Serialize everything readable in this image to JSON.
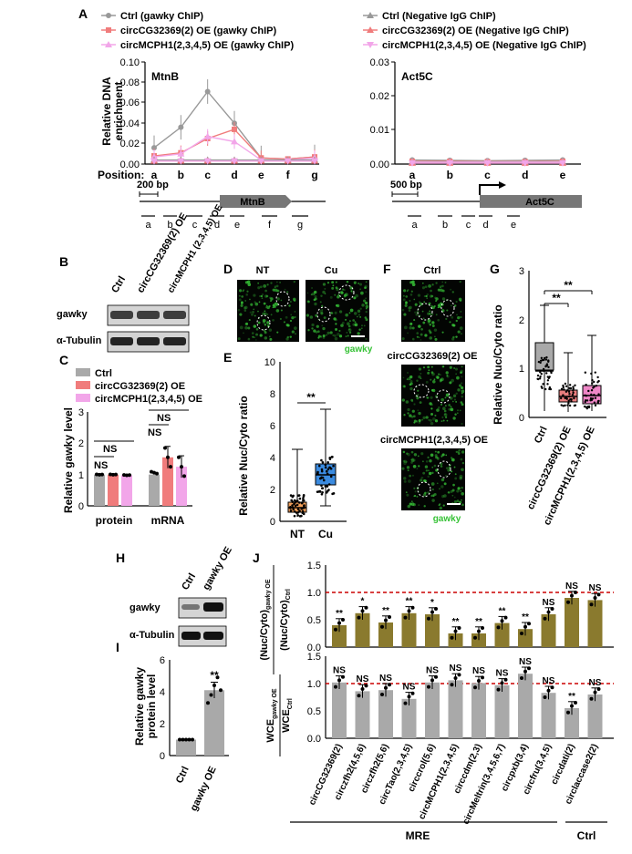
{
  "panel_labels": [
    "A",
    "B",
    "C",
    "D",
    "E",
    "F",
    "G",
    "H",
    "I",
    "J"
  ],
  "colors": {
    "gray": "#999999",
    "red": "#f07c7c",
    "pink": "#f2a6e9",
    "olive": "#8a7a2e",
    "box_gray": "#a9a9a9",
    "box_orange": "#f5a15a",
    "box_blue": "#3b8be0",
    "box_red": "#e87d7d",
    "box_pink": "#ee86c6",
    "dashed_red": "#cc0000",
    "micro_green": "#37c237"
  },
  "panelA": {
    "legend": [
      "Ctrl (gawky ChIP)",
      "Ctrl (Negative IgG ChIP)",
      "circCG32369(2) OE (gawky ChIP)",
      "circCG32369(2) OE (Negative IgG ChIP)",
      "circMCPH1(2,3,4,5) OE (gawky ChIP)",
      "circMCPH1(2,3,4,5) OE (Negative IgG ChIP)"
    ],
    "ylabel": [
      "Relative DNA",
      "enrichment"
    ],
    "position_label": "Position:",
    "left": {
      "gene": "MtnB",
      "yticks": [
        "0.10",
        "0.08",
        "0.06",
        "0.04",
        "0.02",
        "0.00"
      ],
      "xticks": [
        "a",
        "b",
        "c",
        "d",
        "e",
        "f",
        "g"
      ],
      "scalebar": "200 bp",
      "frags": [
        "a",
        "b",
        "c",
        "d",
        "e",
        "f",
        "g"
      ]
    },
    "right": {
      "gene": "Act5C",
      "yticks": [
        "0.03",
        "0.02",
        "0.01",
        "0.00"
      ],
      "xticks": [
        "a",
        "b",
        "c",
        "d",
        "e"
      ],
      "scalebar": "500 bp",
      "frags": [
        "a",
        "b",
        "c",
        "d",
        "e"
      ]
    }
  },
  "chart_data": [
    {
      "type": "line",
      "title": "MtnB",
      "ylabel": "Relative DNA enrichment",
      "ylim": [
        0,
        0.1
      ],
      "x": [
        "a",
        "b",
        "c",
        "d",
        "e",
        "f",
        "g"
      ],
      "series": [
        {
          "name": "Ctrl (gawky ChIP)",
          "values": [
            0.016,
            0.036,
            0.071,
            0.04,
            0.006,
            0.005,
            0.007
          ]
        },
        {
          "name": "circCG32369(2) OE (gawky ChIP)",
          "values": [
            0.008,
            0.011,
            0.025,
            0.034,
            0.006,
            0.005,
            0.007
          ]
        },
        {
          "name": "circMCPH1(2,3,4,5) OE (gawky ChIP)",
          "values": [
            0.007,
            0.01,
            0.027,
            0.022,
            0.004,
            0.004,
            0.006
          ]
        },
        {
          "name": "Ctrl (Negative IgG ChIP)",
          "values": [
            0.004,
            0.004,
            0.004,
            0.004,
            0.004,
            0.004,
            0.004
          ]
        },
        {
          "name": "circCG32369(2) OE (Negative IgG ChIP)",
          "values": [
            0.003,
            0.003,
            0.003,
            0.003,
            0.003,
            0.003,
            0.003
          ]
        },
        {
          "name": "circMCPH1(2,3,4,5) OE (Negative IgG ChIP)",
          "values": [
            0.003,
            0.003,
            0.003,
            0.003,
            0.003,
            0.003,
            0.003
          ]
        }
      ]
    },
    {
      "type": "line",
      "title": "Act5C",
      "ylim": [
        0,
        0.03
      ],
      "x": [
        "a",
        "b",
        "c",
        "d",
        "e"
      ],
      "series": [
        {
          "name": "Ctrl (gawky ChIP)",
          "values": [
            0.0012,
            0.0011,
            0.001,
            0.0011,
            0.0012
          ]
        },
        {
          "name": "circCG32369(2) OE (gawky ChIP)",
          "values": [
            0.0008,
            0.0008,
            0.0007,
            0.0007,
            0.0008
          ]
        },
        {
          "name": "circMCPH1(2,3,4,5) OE (gawky ChIP)",
          "values": [
            0.0006,
            0.0006,
            0.0006,
            0.0006,
            0.0006
          ]
        },
        {
          "name": "Ctrl (Negative IgG ChIP)",
          "values": [
            0.0004,
            0.0004,
            0.0004,
            0.0004,
            0.0004
          ]
        },
        {
          "name": "circCG32369(2) OE (Negative IgG ChIP)",
          "values": [
            0.0003,
            0.0003,
            0.0003,
            0.0003,
            0.0003
          ]
        },
        {
          "name": "circMCPH1(2,3,4,5) OE (Negative IgG ChIP)",
          "values": [
            0.0003,
            0.0003,
            0.0003,
            0.0003,
            0.0003
          ]
        }
      ]
    },
    {
      "type": "bar",
      "ylabel": "Relative gawky level",
      "ylim": [
        0,
        3
      ],
      "categories": [
        "protein",
        "mRNA"
      ],
      "series": [
        {
          "name": "Ctrl",
          "values": [
            1.0,
            1.0
          ]
        },
        {
          "name": "circCG32369(2) OE",
          "values": [
            1.0,
            1.55
          ]
        },
        {
          "name": "circMCPH1(2,3,4,5) OE",
          "values": [
            0.98,
            1.25
          ]
        }
      ],
      "annotations": [
        "NS",
        "NS",
        "NS",
        "NS"
      ]
    },
    {
      "type": "box",
      "ylabel": "Relative Nuc/Cyto ratio",
      "ylim": [
        0,
        10
      ],
      "categories": [
        "NT",
        "Cu"
      ],
      "medians": [
        0.85,
        2.9
      ],
      "annotations": [
        "**"
      ]
    },
    {
      "type": "box",
      "ylabel": "Relative Nuc/Cyto ratio",
      "ylim": [
        0,
        3
      ],
      "categories": [
        "Ctrl",
        "circCG32369(2) OE",
        "circMCPH1(2,3,4,5) OE"
      ],
      "medians": [
        0.95,
        0.42,
        0.45
      ],
      "annotations": [
        "**",
        "**"
      ]
    },
    {
      "type": "bar",
      "ylabel": "Relative gawky protein level",
      "ylim": [
        0,
        6
      ],
      "categories": [
        "Ctrl",
        "gawky OE"
      ],
      "values": [
        1.0,
        4.1
      ],
      "annotations": [
        "**"
      ]
    },
    {
      "type": "bar",
      "ylabel": "(Nuc/Cyto) gawky OE / (Nuc/Cyto) Ctrl",
      "ylim": [
        0,
        1.5
      ],
      "categories": [
        "circCG32369(2)",
        "circzfh2(4,5,6)",
        "circzfh2(5,6)",
        "circTao(2,3,4,5)",
        "circcrol(5,6)",
        "circMCPH1(2,3,4,5)",
        "circcdm(2,3)",
        "circMeltrin(3,4,5,6,7)",
        "circpxb(3,4)",
        "circfru(3,4,5)",
        "circdati(2)",
        "circlaccase2(2)"
      ],
      "values": [
        0.4,
        0.62,
        0.45,
        0.62,
        0.6,
        0.25,
        0.25,
        0.44,
        0.33,
        0.6,
        0.9,
        0.86
      ],
      "annotations": [
        "**",
        "*",
        "**",
        "**",
        "*",
        "**",
        "**",
        "**",
        "**",
        "NS",
        "NS",
        "NS"
      ]
    },
    {
      "type": "bar",
      "ylabel": "WCE gawky OE / WCE Ctrl",
      "ylim": [
        0,
        1.5
      ],
      "categories": [
        "circCG32369(2)",
        "circzfh2(4,5,6)",
        "circzfh2(5,6)",
        "circTao(2,3,4,5)",
        "circcrol(5,6)",
        "circMCPH1(2,3,4,5)",
        "circcdm(2,3)",
        "circMeltrin(3,4,5,6,7)",
        "circpxb(3,4)",
        "circfru(3,4,5)",
        "circdati(2)",
        "circlaccase2(2)"
      ],
      "values": [
        1.02,
        0.86,
        0.88,
        0.72,
        1.02,
        1.06,
        1.01,
        0.97,
        1.18,
        0.83,
        0.55,
        0.8
      ],
      "annotations": [
        "NS",
        "NS",
        "NS",
        "NS",
        "NS",
        "NS",
        "NS",
        "NS",
        "NS",
        "NS",
        "**",
        "NS"
      ]
    }
  ],
  "panelB": {
    "lanes": [
      "Ctrl",
      "circCG32369(2) OE",
      "circMCPH1 (2,3,4,5) OE"
    ],
    "rows": [
      "gawky",
      "α-Tubulin"
    ]
  },
  "panelC": {
    "legend": [
      "Ctrl",
      "circCG32369(2) OE",
      "circMCPH1(2,3,4,5) OE"
    ],
    "ylabel": "Relative gawky level",
    "yticks": [
      "3",
      "2",
      "1",
      "0"
    ],
    "xticks": [
      "protein",
      "mRNA"
    ],
    "ns": "NS"
  },
  "panelD": {
    "labels": [
      "NT",
      "Cu"
    ],
    "stain": "gawky"
  },
  "panelE": {
    "ylabel": "Relative Nuc/Cyto ratio",
    "yticks": [
      "10",
      "8",
      "6",
      "4",
      "2",
      "0"
    ],
    "xticks": [
      "NT",
      "Cu"
    ],
    "sig": "**"
  },
  "panelF": {
    "labels": [
      "Ctrl",
      "circCG32369(2) OE",
      "circMCPH1(2,3,4,5) OE"
    ],
    "stain": "gawky"
  },
  "panelG": {
    "ylabel": "Relative Nuc/Cyto ratio",
    "yticks": [
      "3",
      "2",
      "1",
      "0"
    ],
    "xticks": [
      "Ctrl",
      "circCG32369(2) OE",
      "circMCPH1(2,3,4,5) OE"
    ],
    "sig": "**"
  },
  "panelH": {
    "lanes": [
      "Ctrl",
      "gawky OE"
    ],
    "rows": [
      "gawky",
      "α-Tubulin"
    ]
  },
  "panelI": {
    "ylabel": "Relative gawky protein level",
    "yticks": [
      "6",
      "4",
      "2",
      "0"
    ],
    "xticks": [
      "Ctrl",
      "gawky OE"
    ],
    "sig": "**"
  },
  "panelJ": {
    "top_ylabel_num": "(Nuc/Cyto)",
    "top_ylabel_num_sub": "gawky OE",
    "top_ylabel_den": "(Nuc/Cyto)",
    "top_ylabel_den_sub": "Ctrl",
    "bot_ylabel_num": "WCE",
    "bot_ylabel_num_sub": "gawky OE",
    "bot_ylabel_den": "WCE",
    "bot_ylabel_den_sub": "Ctrl",
    "yticks": [
      "1.5",
      "1.0",
      "0.5",
      "0.0"
    ],
    "group_mre": "MRE",
    "group_ctrl": "Ctrl"
  }
}
